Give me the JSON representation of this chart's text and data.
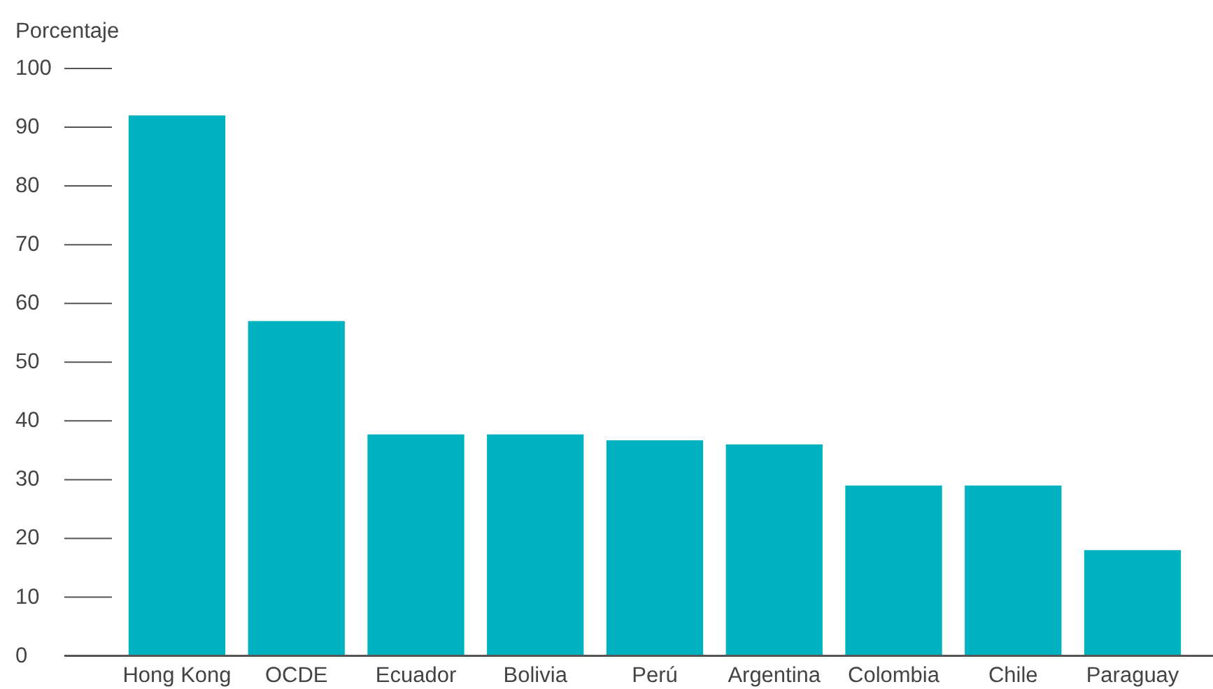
{
  "chart_data": {
    "type": "bar",
    "ylabel": "Porcentaje",
    "categories": [
      "Hong Kong",
      "OCDE",
      "Ecuador",
      "Bolivia",
      "Perú",
      "Argentina",
      "Colombia",
      "Chile",
      "Paraguay"
    ],
    "values": [
      92,
      57,
      37.7,
      37.7,
      36.7,
      36,
      29,
      29,
      18
    ],
    "color": "#00b2c0",
    "ylim": [
      0,
      100
    ],
    "yticks": [
      0,
      10,
      20,
      30,
      40,
      50,
      60,
      70,
      80,
      90,
      100
    ]
  }
}
